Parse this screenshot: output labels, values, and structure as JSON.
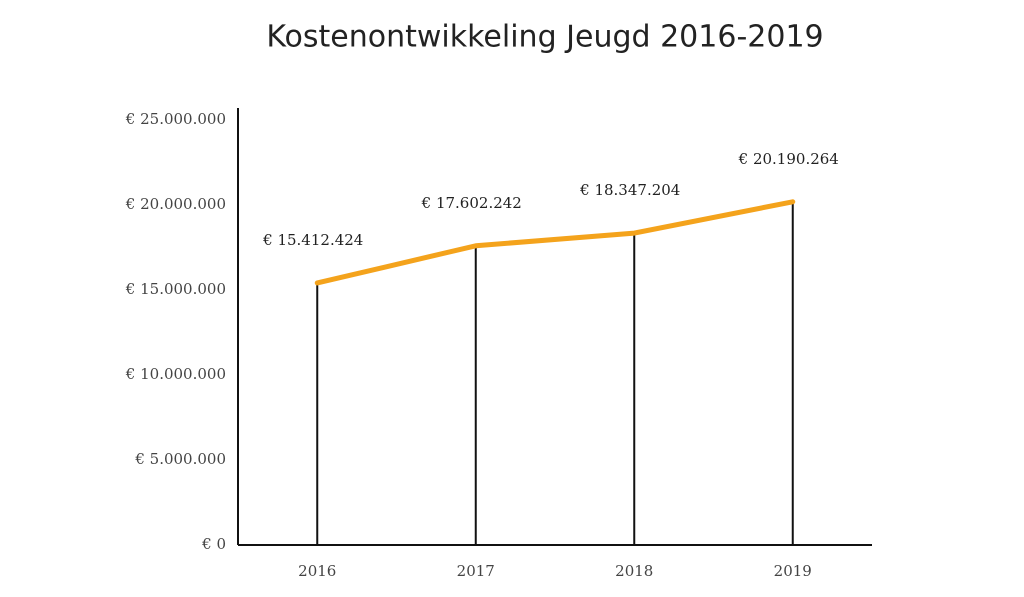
{
  "chart_data": {
    "type": "line",
    "title": "Kostenontwikkeling Jeugd 2016-2019",
    "categories": [
      "2016",
      "2017",
      "2018",
      "2019"
    ],
    "values": [
      15412424,
      17602242,
      18347204,
      20190264
    ],
    "value_labels": [
      "€ 15.412.424",
      "€ 17.602.242",
      "€ 18.347.204",
      "€ 20.190.264"
    ],
    "color": "#f4a31c",
    "ylim": [
      0,
      25000000
    ],
    "yticks": [
      {
        "value": 0,
        "label": "€ 0"
      },
      {
        "value": 5000000,
        "label": "€ 5.000.000"
      },
      {
        "value": 10000000,
        "label": "€ 10.000.000"
      },
      {
        "value": 15000000,
        "label": "€ 15.000.000"
      },
      {
        "value": 20000000,
        "label": "€ 20.000.000"
      },
      {
        "value": 25000000,
        "label": "€ 25.000.000"
      }
    ],
    "drop_lines": true
  }
}
